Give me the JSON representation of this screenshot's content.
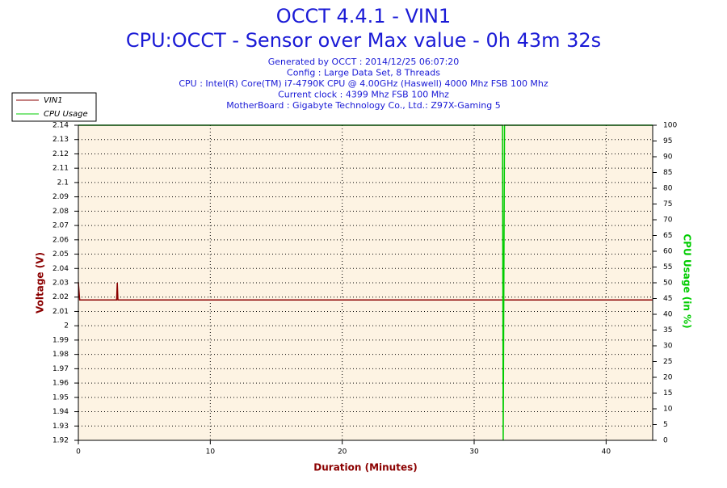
{
  "chart_data": {
    "type": "line",
    "title": "OCCT 4.4.1 - VIN1",
    "subtitle": "CPU:OCCT - Sensor over Max value - 0h 43m 32s",
    "info_lines": [
      "Generated by OCCT : 2014/12/25 06:07:20",
      "Config : Large Data Set, 8 Threads",
      "CPU : Intel(R) Core(TM) i7-4790K CPU @ 4.00GHz (Haswell) 4000 Mhz FSB 100 Mhz",
      "Current clock : 4399 Mhz FSB 100 Mhz",
      "MotherBoard : Gigabyte Technology Co., Ltd.: Z97X-Gaming 5"
    ],
    "xlabel": "Duration (Minutes)",
    "ylabel": "Voltage (V)",
    "y2label": "CPU Usage (in %)",
    "legend": "upper-left",
    "grid": true,
    "xlim": [
      0,
      43.53
    ],
    "xticks": [
      0,
      10,
      20,
      30,
      40
    ],
    "ylim": [
      1.92,
      2.14
    ],
    "yticks": [
      1.92,
      1.93,
      1.94,
      1.95,
      1.96,
      1.97,
      1.98,
      1.99,
      2,
      2.01,
      2.02,
      2.03,
      2.04,
      2.05,
      2.06,
      2.07,
      2.08,
      2.09,
      2.1,
      2.11,
      2.12,
      2.13,
      2.14
    ],
    "y2lim": [
      0,
      100
    ],
    "y2ticks": [
      0,
      5,
      10,
      15,
      20,
      25,
      30,
      35,
      40,
      45,
      50,
      55,
      60,
      65,
      70,
      75,
      80,
      85,
      90,
      95,
      100
    ],
    "series": [
      {
        "name": "VIN1",
        "color": "#8b0000",
        "x": [
          0,
          0.1,
          2.9,
          2.95,
          3.0,
          43.53
        ],
        "values": [
          2.03,
          2.018,
          2.018,
          2.03,
          2.018,
          2.018
        ]
      },
      {
        "name": "CPU Usage",
        "color": "#00cc00",
        "axis": "y2",
        "x": [
          0,
          32.15,
          32.2,
          32.25,
          32.3,
          43.53
        ],
        "values": [
          100,
          100,
          0,
          50,
          100,
          100
        ]
      }
    ]
  }
}
